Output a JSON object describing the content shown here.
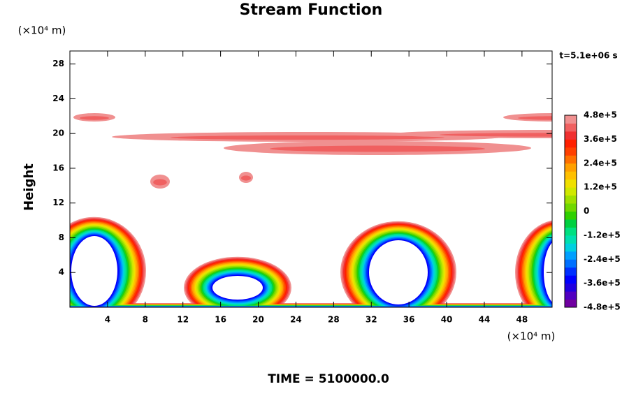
{
  "chart_data": {
    "type": "contour",
    "title": "Stream Function",
    "ylabel": "Height",
    "x_unit": "(×10⁴ m)",
    "y_unit": "(×10⁴ m)",
    "time_label": "t=5.1e+06 s",
    "footer": "TIME = 5100000.0",
    "xlim": [
      0,
      51.2
    ],
    "ylim": [
      0,
      29.5
    ],
    "xticks": [
      4,
      8,
      12,
      16,
      20,
      24,
      28,
      32,
      36,
      40,
      44,
      48
    ],
    "yticks": [
      4,
      8,
      12,
      16,
      20,
      24,
      28
    ],
    "levels": [
      -480000,
      -440000,
      -400000,
      -360000,
      -320000,
      -280000,
      -240000,
      -200000,
      -160000,
      -120000,
      -80000,
      -40000,
      0,
      40000,
      80000,
      120000,
      160000,
      200000,
      240000,
      280000,
      320000,
      360000,
      400000,
      440000,
      480000
    ],
    "colors": [
      "#7000a0",
      "#5000c0",
      "#2000e0",
      "#0000ff",
      "#0030ff",
      "#0070ff",
      "#00a0ff",
      "#00d0e0",
      "#00e0b0",
      "#00e080",
      "#00d040",
      "#30d000",
      "#70d800",
      "#a0e000",
      "#d0e800",
      "#f0e000",
      "#ffc000",
      "#ffa000",
      "#ff7000",
      "#ff4000",
      "#ff2000",
      "#f03030",
      "#f06060",
      "#f09090"
    ],
    "colorbar_ticks": [
      {
        "value": 480000,
        "label": "4.8e+5"
      },
      {
        "value": 360000,
        "label": "3.6e+5"
      },
      {
        "value": 240000,
        "label": "2.4e+5"
      },
      {
        "value": 120000,
        "label": "1.2e+5"
      },
      0,
      {
        "value": -120000,
        "label": "-1.2e+5"
      },
      {
        "value": -240000,
        "label": "-2.4e+5"
      },
      {
        "value": -360000,
        "label": "-3.6e+5"
      },
      {
        "value": -480000,
        "label": "-4.8e+5"
      }
    ]
  }
}
